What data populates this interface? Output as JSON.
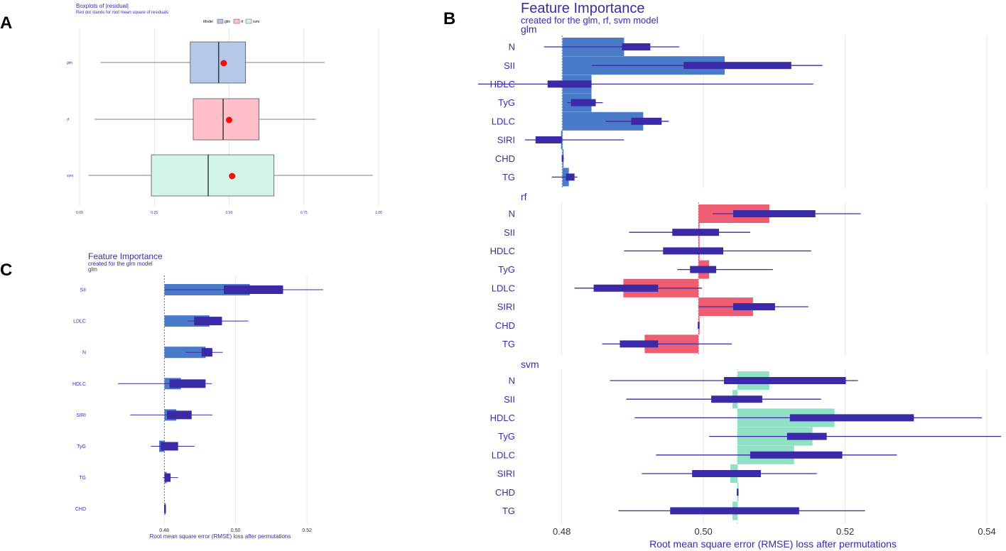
{
  "panel_labels": {
    "a": "A",
    "b": "B",
    "c": "C"
  },
  "colors": {
    "ink": "#3a2aa8",
    "bar_glm": "#4a7bc8",
    "bar_rf": "#ef5d73",
    "bar_svm": "#8fe0c4",
    "bp_glm": "#b4c8e8",
    "bp_rf": "#ffbfc8",
    "bp_svm": "#d1f5e6",
    "dot": "#ee1111",
    "grid": "#e6e6e6"
  },
  "chart_data": [
    {
      "id": "A",
      "type": "boxplot",
      "title": "Boxplots of |residual|",
      "subtitle": "Red dot stands for root mean square of residuals",
      "legend_title": "Model",
      "legend_position": "top",
      "categories": [
        "glm",
        "rf",
        "svm"
      ],
      "xlim": [
        0,
        1
      ],
      "xticks": [
        0,
        0.25,
        0.5,
        0.75,
        1
      ],
      "xtick_labels": [
        "0.00",
        "0.25",
        "0.50",
        "0.75",
        "1.00"
      ],
      "boxes": [
        {
          "model": "glm",
          "min": 0.07,
          "q1": 0.37,
          "median": 0.465,
          "q3": 0.555,
          "max": 0.82,
          "rmse": 0.482
        },
        {
          "model": "rf",
          "min": 0.05,
          "q1": 0.38,
          "median": 0.48,
          "q3": 0.6,
          "max": 0.79,
          "rmse": 0.5
        },
        {
          "model": "svm",
          "min": 0.03,
          "q1": 0.24,
          "median": 0.43,
          "q3": 0.65,
          "max": 0.98,
          "rmse": 0.51
        }
      ]
    },
    {
      "id": "B",
      "type": "bar",
      "title": "Feature Importance",
      "subtitle": "created for the glm, rf, svm model",
      "xlabel": "Root mean square error (RMSE) loss after permutations",
      "xlim": [
        0.4685,
        0.5425
      ],
      "xticks": [
        0.48,
        0.5,
        0.52,
        0.54
      ],
      "xtick_labels": [
        "0.48",
        "0.50",
        "0.52",
        "0.54"
      ],
      "panels": [
        {
          "model": "glm",
          "label": "glm",
          "baseline": 0.4801,
          "features": [
            "N",
            "SII",
            "HDLC",
            "TyG",
            "LDLC",
            "SIRI",
            "CHD",
            "TG"
          ],
          "values": [
            0.4888,
            0.503,
            0.4842,
            0.4842,
            0.4915,
            0.4799,
            0.4801,
            0.481
          ],
          "box_low": [
            0.4885,
            0.4972,
            0.478,
            0.4813,
            0.4898,
            0.4763,
            0.48,
            0.4806
          ],
          "box_high": [
            0.4925,
            0.5124,
            0.4842,
            0.4848,
            0.4941,
            0.48,
            0.4802,
            0.4818
          ],
          "whisker_low": [
            0.4775,
            0.4842,
            0.4682,
            0.4808,
            0.4862,
            0.4748,
            0.48,
            0.4786
          ],
          "whisker_high": [
            0.4966,
            0.5168,
            0.5155,
            0.4858,
            0.4951,
            0.4888,
            0.4803,
            0.4822
          ]
        },
        {
          "model": "rf",
          "label": "rf",
          "baseline": 0.4993,
          "features": [
            "N",
            "SII",
            "HDLC",
            "TyG",
            "LDLC",
            "SIRI",
            "CHD",
            "TG"
          ],
          "values": [
            0.5093,
            0.4993,
            0.4993,
            0.5008,
            0.4887,
            0.507,
            0.4993,
            0.4917
          ],
          "box_low": [
            0.5042,
            0.4956,
            0.4943,
            0.4981,
            0.4845,
            0.5042,
            0.4992,
            0.4882
          ],
          "box_high": [
            0.5158,
            0.5022,
            0.5028,
            0.5018,
            0.4936,
            0.5101,
            0.4994,
            0.4936
          ],
          "whisker_low": [
            0.5013,
            0.4895,
            0.4888,
            0.4963,
            0.4818,
            0.4993,
            0.4992,
            0.4857
          ],
          "whisker_high": [
            0.5222,
            0.5066,
            0.5152,
            0.5098,
            0.4998,
            0.5148,
            0.4994,
            0.504
          ]
        },
        {
          "model": "svm",
          "label": "svm",
          "baseline": 0.5048,
          "features": [
            "N",
            "SII",
            "HDLC",
            "TyG",
            "LDLC",
            "SIRI",
            "CHD",
            "TG"
          ],
          "values": [
            0.5093,
            0.5041,
            0.5185,
            0.5154,
            0.5128,
            0.5038,
            0.5048,
            0.5041
          ],
          "box_low": [
            0.5029,
            0.5011,
            0.5122,
            0.5118,
            0.5066,
            0.4984,
            0.5047,
            0.4953
          ],
          "box_high": [
            0.5201,
            0.5083,
            0.5297,
            0.5174,
            0.5196,
            0.5081,
            0.5049,
            0.5135
          ],
          "whisker_low": [
            0.4868,
            0.4891,
            0.4903,
            0.5008,
            0.4933,
            0.4913,
            0.5047,
            0.488
          ],
          "whisker_high": [
            0.5218,
            0.5166,
            0.5393,
            0.542,
            0.5273,
            0.516,
            0.5049,
            0.5228
          ]
        }
      ]
    },
    {
      "id": "C",
      "type": "bar",
      "title": "Feature Importance",
      "subtitle": "created for the glm model",
      "model_label": "glm",
      "xlabel": "Root mean square error (RMSE) loss after permutations",
      "xlim": [
        0.4595,
        0.5355
      ],
      "xticks": [
        0.48,
        0.5,
        0.52
      ],
      "xtick_labels": [
        "0.48",
        "0.50",
        "0.52"
      ],
      "baseline": 0.4801,
      "features": [
        "SII",
        "LDLC",
        "N",
        "HDLC",
        "SIRI",
        "TyG",
        "TG",
        "CHD"
      ],
      "values": [
        0.504,
        0.4927,
        0.4916,
        0.4847,
        0.4834,
        0.4786,
        0.4807,
        0.4801
      ],
      "box_low": [
        0.4967,
        0.4884,
        0.4905,
        0.4815,
        0.4808,
        0.479,
        0.4801,
        0.48
      ],
      "box_high": [
        0.5133,
        0.4962,
        0.4935,
        0.4916,
        0.4877,
        0.4839,
        0.4818,
        0.4803
      ],
      "whisker_low": [
        0.4801,
        0.4866,
        0.4861,
        0.4671,
        0.4705,
        0.4763,
        0.4796,
        0.48
      ],
      "whisker_high": [
        0.5245,
        0.5036,
        0.4964,
        0.4934,
        0.4935,
        0.4885,
        0.4839,
        0.4803
      ]
    }
  ]
}
